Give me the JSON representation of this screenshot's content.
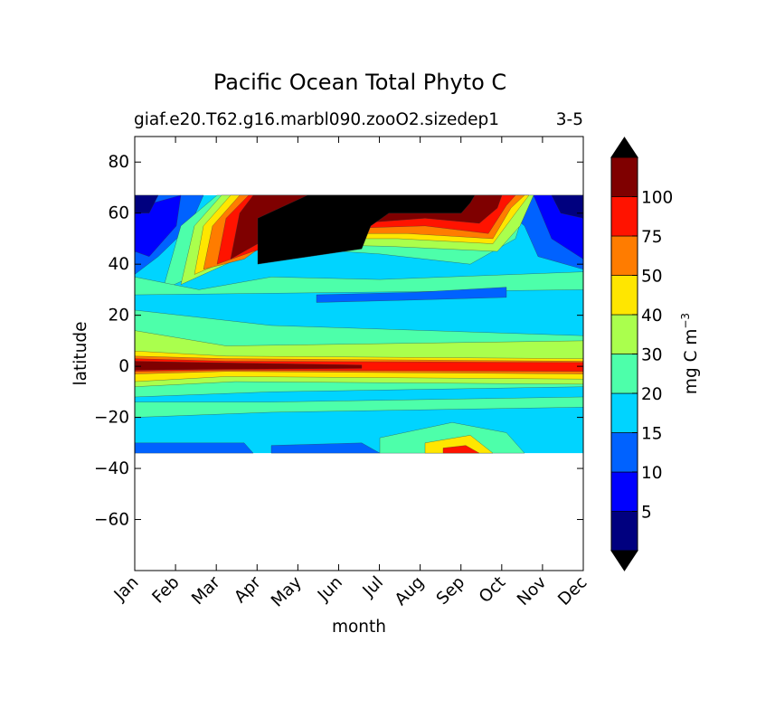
{
  "chart_data": {
    "type": "contourf",
    "title": "Pacific Ocean Total Phyto C",
    "subtitle_left": "giaf.e20.T62.g16.marbl090.zooO2.sizedep1",
    "subtitle_right": "3-5",
    "xlabel": "month",
    "ylabel": "latitude",
    "x_ticks": [
      "Jan",
      "Feb",
      "Mar",
      "Apr",
      "May",
      "Jun",
      "Jul",
      "Aug",
      "Sep",
      "Oct",
      "Nov",
      "Dec"
    ],
    "y_ticks": [
      80,
      60,
      40,
      20,
      0,
      -20,
      -40,
      -60
    ],
    "y_tick_labels": [
      "80",
      "60",
      "40",
      "20",
      "0",
      "−20",
      "−40",
      "−60"
    ],
    "ylim": [
      -80,
      90
    ],
    "data_lat_range": [
      -34,
      67
    ],
    "colorbar": {
      "label": "mg C m",
      "label_sup": "−3",
      "levels": [
        0,
        5,
        10,
        15,
        20,
        30,
        40,
        50,
        75,
        100,
        125
      ],
      "tick_values": [
        5,
        10,
        15,
        20,
        30,
        40,
        50,
        75,
        100
      ],
      "tick_labels": [
        "5",
        "10",
        "15",
        "20",
        "30",
        "40",
        "50",
        "75",
        "100"
      ],
      "colors": [
        "#00007f",
        "#0000ff",
        "#0062ff",
        "#00d4ff",
        "#4dffaa",
        "#aaff4d",
        "#ffe600",
        "#ff7c00",
        "#ff1300",
        "#7f0000"
      ],
      "over_color": "#000000",
      "under_color": "#000000",
      "extend": "both"
    },
    "field_description_bands": [
      {
        "lat": [
          60,
          67
        ],
        "months": "May-Jul",
        "value": 130
      },
      {
        "lat": [
          45,
          60
        ],
        "months": "May-Jul",
        "value": 130
      },
      {
        "lat": [
          -2,
          2
        ],
        "months": "Jan-Dec",
        "value": 90
      },
      {
        "lat": [
          -30,
          15
        ],
        "months": "Jan-Dec",
        "value": 18
      }
    ]
  }
}
